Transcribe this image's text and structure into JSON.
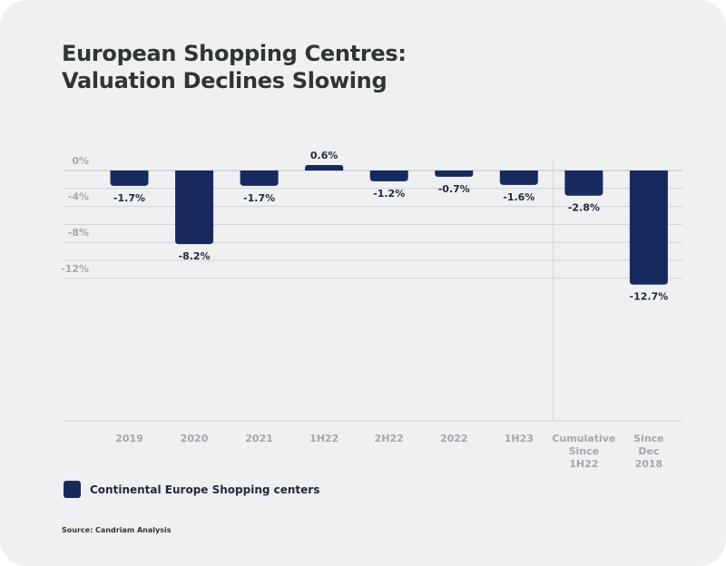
{
  "title_line1": "European Shopping Centres:",
  "title_line2": "Valuation Declines Slowing",
  "legend_label": "Continental Europe Shopping centers",
  "source": "Source: Candriam Analysis",
  "colors": {
    "bar": "#172a5e",
    "background": "#eff0f2",
    "grid": "#cfd2d6",
    "tick_text": "#a3a7ad",
    "label_text": "#1e2a3a"
  },
  "chart_data": {
    "type": "bar",
    "categories": [
      [
        "2019"
      ],
      [
        "2020"
      ],
      [
        "2021"
      ],
      [
        "1H22"
      ],
      [
        "2H22"
      ],
      [
        "2022"
      ],
      [
        "1H23"
      ],
      [
        "Cumulative",
        "Since",
        "1H22"
      ],
      [
        "Since",
        "Dec",
        "2018"
      ]
    ],
    "series": [
      {
        "name": "Continental Europe Shopping centers",
        "values": [
          -1.7,
          -8.2,
          -1.7,
          0.6,
          -1.2,
          -0.7,
          -1.6,
          -2.8,
          -12.7
        ]
      }
    ],
    "value_labels": [
      "-1.7%",
      "-8.2%",
      "-1.7%",
      "0.6%",
      "-1.2%",
      "-0.7%",
      "-1.6%",
      "-2.8%",
      "-12.7%"
    ],
    "y_ticks": [
      {
        "value": 0,
        "label": "0%"
      },
      {
        "value": -4,
        "label": "-4%"
      },
      {
        "value": -8,
        "label": "-8%"
      },
      {
        "value": -12,
        "label": "-12%"
      }
    ],
    "ylim": [
      -14,
      0.6
    ],
    "grid": true,
    "separator_before_category": 7,
    "legend_position": "bottom-left"
  }
}
